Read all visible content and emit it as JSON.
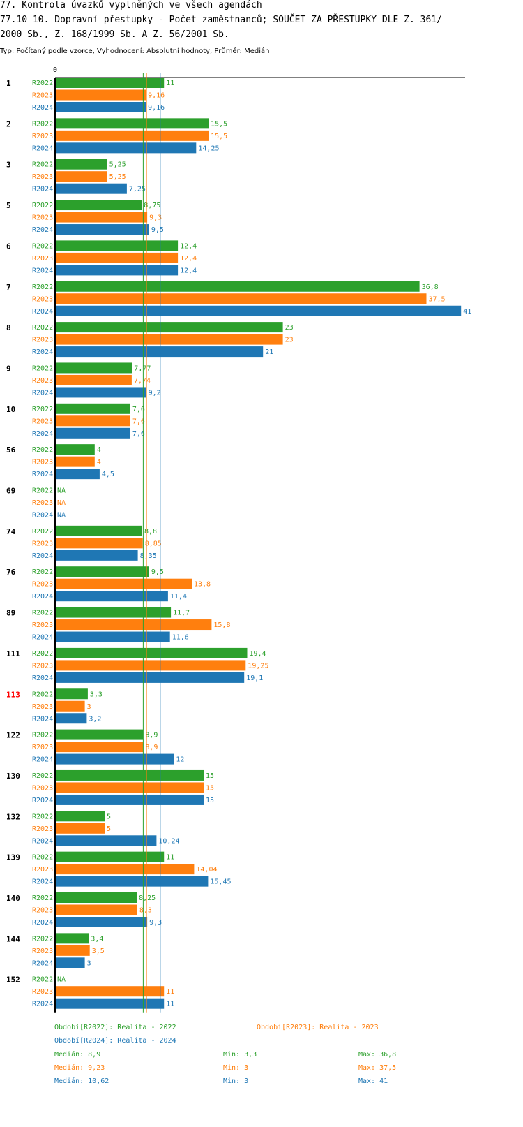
{
  "header": {
    "title_line1": "77. Kontrola úvazků vyplněných ve všech agendách",
    "title_line2": "77.10 10. Dopravní přestupky - Počet zaměstnanců; SOUČET ZA PŘESTUPKY DLE Z. 361/",
    "title_line3": "2000 Sb., Z. 168/1999 Sb. A Z. 56/2001 Sb.",
    "subtitle": "Typ: Počítaný podle vzorce, Vyhodnocení: Absolutní hodnoty, Průměr: Medián"
  },
  "colors": {
    "R2022": "#2ca02c",
    "R2023": "#ff7f0e",
    "R2024": "#1f77b4",
    "highlight": "#ff0000",
    "axis": "#000000"
  },
  "chart_data": {
    "type": "bar",
    "orientation": "horizontal",
    "axis_zero_label": "0",
    "xlim": [
      0,
      41
    ],
    "na_label": "NA",
    "series_names": [
      "R2022",
      "R2023",
      "R2024"
    ],
    "categories": [
      {
        "label": "1",
        "highlight": false,
        "values": [
          11,
          9.16,
          9.16
        ]
      },
      {
        "label": "2",
        "highlight": false,
        "values": [
          15.5,
          15.5,
          14.25
        ]
      },
      {
        "label": "3",
        "highlight": false,
        "values": [
          5.25,
          5.25,
          7.25
        ]
      },
      {
        "label": "5",
        "highlight": false,
        "values": [
          8.75,
          9.3,
          9.5
        ]
      },
      {
        "label": "6",
        "highlight": false,
        "values": [
          12.4,
          12.4,
          12.4
        ]
      },
      {
        "label": "7",
        "highlight": false,
        "values": [
          36.8,
          37.5,
          41
        ]
      },
      {
        "label": "8",
        "highlight": false,
        "values": [
          23,
          23,
          21
        ]
      },
      {
        "label": "9",
        "highlight": false,
        "values": [
          7.77,
          7.74,
          9.2
        ]
      },
      {
        "label": "10",
        "highlight": false,
        "values": [
          7.6,
          7.6,
          7.6
        ]
      },
      {
        "label": "56",
        "highlight": false,
        "values": [
          4,
          4,
          4.5
        ]
      },
      {
        "label": "69",
        "highlight": false,
        "values": [
          null,
          null,
          null
        ]
      },
      {
        "label": "74",
        "highlight": false,
        "values": [
          8.8,
          8.85,
          8.35
        ]
      },
      {
        "label": "76",
        "highlight": false,
        "values": [
          9.5,
          13.8,
          11.4
        ]
      },
      {
        "label": "89",
        "highlight": false,
        "values": [
          11.7,
          15.8,
          11.6
        ]
      },
      {
        "label": "111",
        "highlight": false,
        "values": [
          19.4,
          19.25,
          19.1
        ]
      },
      {
        "label": "113",
        "highlight": true,
        "values": [
          3.3,
          3,
          3.2
        ]
      },
      {
        "label": "122",
        "highlight": false,
        "values": [
          8.9,
          8.9,
          12
        ]
      },
      {
        "label": "130",
        "highlight": false,
        "values": [
          15,
          15,
          15
        ]
      },
      {
        "label": "132",
        "highlight": false,
        "values": [
          5,
          5,
          10.24
        ]
      },
      {
        "label": "139",
        "highlight": false,
        "values": [
          11,
          14.04,
          15.45
        ]
      },
      {
        "label": "140",
        "highlight": false,
        "values": [
          8.25,
          8.3,
          9.3
        ]
      },
      {
        "label": "144",
        "highlight": false,
        "values": [
          3.4,
          3.5,
          3
        ]
      },
      {
        "label": "152",
        "highlight": false,
        "values": [
          null,
          11,
          11
        ]
      }
    ],
    "medians": [
      8.9,
      9.23,
      10.62
    ]
  },
  "legend": {
    "period_2022": "Období[R2022]: Realita - 2022",
    "period_2023": "Období[R2023]: Realita - 2023",
    "period_2024": "Období[R2024]: Realita - 2024",
    "stats": [
      {
        "median": "Medián: 8,9",
        "min": "Min: 3,3",
        "max": "Max: 36,8"
      },
      {
        "median": "Medián: 9,23",
        "min": "Min: 3",
        "max": "Max: 37,5"
      },
      {
        "median": "Medián: 10,62",
        "min": "Min: 3",
        "max": "Max: 41"
      }
    ]
  }
}
